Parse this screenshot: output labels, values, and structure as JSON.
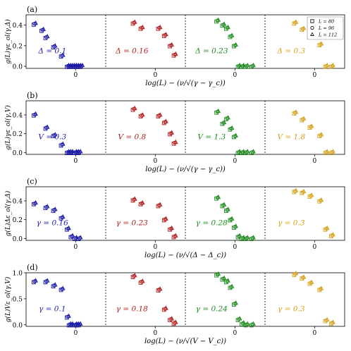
{
  "legend": {
    "entries": [
      {
        "label": "L = 80",
        "marker": "square"
      },
      {
        "label": "L = 96",
        "marker": "circle"
      },
      {
        "label": "L = 112",
        "marker": "triangle"
      }
    ]
  },
  "colors": {
    "blue": "#1a1aa6",
    "red": "#b01c1c",
    "green": "#1e8a1e",
    "gold": "#d4a017",
    "axis": "#000000"
  },
  "chart_data": [
    {
      "panel": "(a)",
      "type": "scatter",
      "ylabel": "g(L)γε_ol(γ,Δ)",
      "xlabel": "log(L) − (ν/√(γ − γ_c))",
      "ylim": [
        -0.02,
        0.5
      ],
      "yticks": [
        "0.0",
        "0.2",
        "0.4"
      ],
      "ytick_values": [
        0.0,
        0.2,
        0.4
      ],
      "xtick_labels": [
        "0",
        "0",
        "0",
        "0"
      ],
      "series": [
        {
          "label": "Δ = 0.1",
          "color": "blue",
          "x": [
            -2.1,
            -1.7,
            -1.5,
            -1.1,
            -0.7,
            -0.4,
            -0.3,
            -0.2,
            -0.1,
            0.0,
            0.1,
            0.2,
            0.3
          ],
          "y": [
            0.41,
            0.35,
            0.28,
            0.19,
            0.1,
            0.0,
            0.0,
            0.0,
            0.0,
            0.0,
            0.0,
            0.0,
            0.0
          ]
        },
        {
          "label": "Δ = 0.16",
          "color": "red",
          "x": [
            -1.1,
            -0.7,
            0.2,
            0.5,
            0.8,
            1.0
          ],
          "y": [
            0.42,
            0.37,
            0.37,
            0.3,
            0.2,
            0.11
          ]
        },
        {
          "label": "Δ = 0.23",
          "color": "green",
          "x": [
            -0.9,
            -0.6,
            -0.4,
            -0.2,
            0.0,
            0.2,
            0.4,
            0.6,
            0.9
          ],
          "y": [
            0.44,
            0.4,
            0.37,
            0.29,
            0.2,
            0.0,
            0.0,
            0.0,
            0.0
          ]
        },
        {
          "label": "Δ = 0.3",
          "color": "gold",
          "x": [
            -1.0,
            -0.6,
            -0.2,
            0.3,
            0.6,
            0.9
          ],
          "y": [
            0.42,
            0.36,
            0.3,
            0.21,
            0.0,
            0.0
          ]
        }
      ]
    },
    {
      "panel": "(b)",
      "type": "scatter",
      "ylabel": "g(L)γε_ol(γ,V)",
      "xlabel": "log(L) − (ν/√(γ − γ_c))",
      "ylim": [
        -0.02,
        0.55
      ],
      "yticks": [
        "0.0",
        "0.2",
        "0.4"
      ],
      "ytick_values": [
        0.0,
        0.2,
        0.4
      ],
      "xtick_labels": [
        "0",
        "0",
        "0",
        "0"
      ],
      "series": [
        {
          "label": "V = 0.3",
          "color": "blue",
          "x": [
            -2.1,
            -1.5,
            -1.1,
            -0.7,
            -0.4,
            -0.3,
            -0.2,
            0.0,
            0.1,
            0.2
          ],
          "y": [
            0.4,
            0.26,
            0.18,
            0.08,
            0.0,
            0.0,
            0.0,
            0.0,
            0.0,
            0.0
          ]
        },
        {
          "label": "V = 0.8",
          "color": "red",
          "x": [
            -1.1,
            -0.7,
            0.2,
            0.5,
            0.8,
            1.0
          ],
          "y": [
            0.46,
            0.39,
            0.39,
            0.32,
            0.2,
            0.1
          ]
        },
        {
          "label": "V = 1.3",
          "color": "green",
          "x": [
            -0.9,
            -0.6,
            -0.4,
            -0.2,
            0.0,
            0.2,
            0.4,
            0.6,
            0.9
          ],
          "y": [
            0.43,
            0.31,
            0.36,
            0.25,
            0.17,
            0.0,
            0.0,
            0.0,
            0.0
          ]
        },
        {
          "label": "V = 1.8",
          "color": "gold",
          "x": [
            -1.0,
            -0.6,
            -0.2,
            0.3,
            0.6,
            0.9
          ],
          "y": [
            0.42,
            0.35,
            0.27,
            0.18,
            0.0,
            0.0
          ]
        }
      ]
    },
    {
      "panel": "(c)",
      "type": "scatter",
      "ylabel": "g(L)Δε_ol(γ,Δ)",
      "xlabel": "log(L) − (ν/√(Δ − Δ_c))",
      "ylim": [
        -0.02,
        0.55
      ],
      "yticks": [
        "0.0",
        "0.2",
        "0.4"
      ],
      "ytick_values": [
        0.0,
        0.2,
        0.4
      ],
      "xtick_labels": [
        "0",
        "0",
        "0",
        "0"
      ],
      "series": [
        {
          "label": "γ = 0.16",
          "color": "blue",
          "x": [
            -2.1,
            -1.5,
            -1.1,
            -0.7,
            -0.4,
            -0.2,
            0.0,
            0.2
          ],
          "y": [
            0.37,
            0.33,
            0.3,
            0.22,
            0.1,
            0.02,
            0.0,
            0.0
          ]
        },
        {
          "label": "γ = 0.23",
          "color": "red",
          "x": [
            -1.1,
            -0.7,
            0.2,
            0.5,
            0.8,
            1.0
          ],
          "y": [
            0.41,
            0.37,
            0.35,
            0.2,
            0.1,
            0.02
          ]
        },
        {
          "label": "γ = 0.28",
          "color": "green",
          "x": [
            -0.9,
            -0.6,
            -0.4,
            -0.2,
            0.0,
            0.2,
            0.4,
            0.6,
            0.9
          ],
          "y": [
            0.43,
            0.35,
            0.3,
            0.2,
            0.12,
            0.02,
            0.0,
            0.0,
            0.0
          ]
        },
        {
          "label": "γ = 0.3",
          "color": "gold",
          "x": [
            -1.0,
            -0.6,
            -0.2,
            0.3,
            0.6,
            0.9
          ],
          "y": [
            0.5,
            0.49,
            0.45,
            0.4,
            0.1,
            0.03
          ]
        }
      ]
    },
    {
      "panel": "(d)",
      "type": "scatter",
      "ylabel": "g(L)Vε_ol(γ,V)",
      "xlabel": "log(L) − (ν/√(V − V_c))",
      "ylim": [
        -0.03,
        1.0
      ],
      "yticks": [
        "0.0",
        "0.5",
        "1.0"
      ],
      "ytick_values": [
        0.0,
        0.5,
        1.0
      ],
      "xtick_labels": [
        "0",
        "0",
        "0",
        "0"
      ],
      "series": [
        {
          "label": "γ = 0.1",
          "color": "blue",
          "x": [
            -2.1,
            -1.5,
            -1.1,
            -0.7,
            -0.4,
            -0.3,
            -0.2,
            0.0,
            0.1,
            0.2
          ],
          "y": [
            0.83,
            0.83,
            0.75,
            0.68,
            0.15,
            0.0,
            0.0,
            0.0,
            0.0,
            0.0
          ]
        },
        {
          "label": "γ = 0.18",
          "color": "red",
          "x": [
            -1.1,
            -0.7,
            0.2,
            0.5,
            0.8,
            1.0
          ],
          "y": [
            0.93,
            0.82,
            0.67,
            0.3,
            0.1,
            0.03
          ]
        },
        {
          "label": "γ = 0.24",
          "color": "green",
          "x": [
            -0.9,
            -0.6,
            -0.4,
            -0.2,
            0.0,
            0.2,
            0.4,
            0.6,
            0.9
          ],
          "y": [
            0.96,
            0.88,
            0.83,
            0.72,
            0.4,
            0.1,
            0.02,
            0.0,
            0.0
          ]
        },
        {
          "label": "γ = 0.3",
          "color": "gold",
          "x": [
            -1.0,
            -0.6,
            -0.2,
            0.3,
            0.6,
            0.9
          ],
          "y": [
            0.97,
            0.9,
            0.8,
            0.68,
            0.08,
            0.03
          ]
        }
      ]
    }
  ]
}
